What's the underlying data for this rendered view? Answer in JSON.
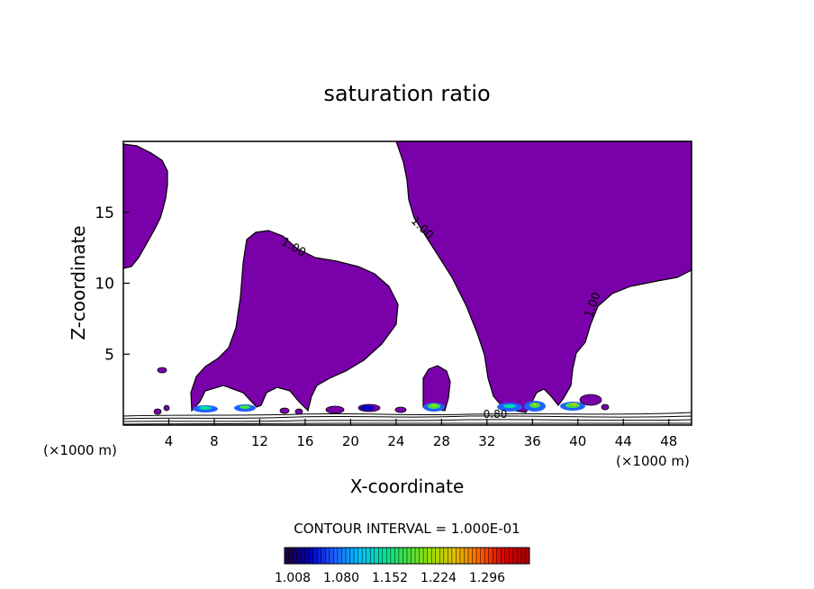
{
  "chart_data": {
    "type": "heatmap",
    "title": "saturation ratio",
    "xlabel": "X-coordinate",
    "ylabel": "Z-coordinate",
    "x_unit": "(×1000 m)",
    "xlim": [
      0,
      50
    ],
    "ylim": [
      0,
      20
    ],
    "x_ticks": [
      "4",
      "8",
      "12",
      "16",
      "20",
      "24",
      "28",
      "32",
      "36",
      "40",
      "44",
      "48"
    ],
    "y_ticks": [
      "5",
      "10",
      "15"
    ],
    "contour_interval_label": "CONTOUR INTERVAL = 1.000E-01",
    "contour_labels": [
      "1.00",
      "1.00",
      "1.00",
      "0.80"
    ],
    "colorbar": {
      "labels": [
        "1.008",
        "1.080",
        "1.152",
        "1.224",
        "1.296"
      ],
      "colors": [
        "#1a0040",
        "#0000c0",
        "#2060ff",
        "#00c0ff",
        "#00e0a0",
        "#40e040",
        "#a0e000",
        "#e0c000",
        "#ff6000",
        "#e00000",
        "#a00000"
      ]
    },
    "fill_color": "#7a00aa",
    "cloud_regions": [
      {
        "x": [
          0,
          4.2
        ],
        "z": [
          11,
          19.6
        ]
      },
      {
        "x": [
          6,
          24
        ],
        "z": [
          1,
          13.8
        ]
      },
      {
        "x": [
          26,
          28
        ],
        "z": [
          1,
          4.2
        ]
      },
      {
        "x": [
          24,
          50
        ],
        "z": [
          1,
          19.8
        ]
      }
    ]
  }
}
